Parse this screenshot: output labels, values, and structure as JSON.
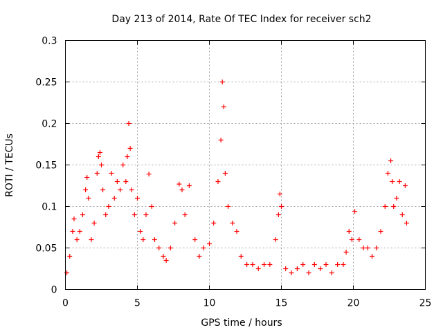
{
  "chart_data": {
    "type": "scatter",
    "title": "Day 213 of 2014, Rate Of TEC Index for receiver sch2",
    "xlabel": "GPS time / hours",
    "ylabel": "ROTI / TECUs",
    "xlim": [
      0,
      25
    ],
    "ylim": [
      0,
      0.3
    ],
    "x_ticks": [
      0,
      5,
      10,
      15,
      20,
      25
    ],
    "x_tick_labels": [
      "0",
      "5",
      "10",
      "15",
      "20",
      "25"
    ],
    "y_ticks": [
      0,
      0.05,
      0.1,
      0.15,
      0.2,
      0.25,
      0.3
    ],
    "y_tick_labels": [
      "0",
      "0.05",
      "0.1",
      "0.15",
      "0.2",
      "0.25",
      "0.3"
    ],
    "grid": true,
    "marker": "+",
    "marker_color": "#ff0000",
    "series": [
      {
        "name": "ROTI",
        "x": [
          0.1,
          0.3,
          0.5,
          0.6,
          0.8,
          1.0,
          1.2,
          1.4,
          1.5,
          1.6,
          1.8,
          2.0,
          2.2,
          2.3,
          2.4,
          2.5,
          2.6,
          2.8,
          3.0,
          3.2,
          3.4,
          3.6,
          3.8,
          4.0,
          4.2,
          4.3,
          4.4,
          4.5,
          4.6,
          4.8,
          5.0,
          5.2,
          5.4,
          5.6,
          5.8,
          6.0,
          6.2,
          6.5,
          6.8,
          7.0,
          7.3,
          7.6,
          7.9,
          8.1,
          8.3,
          8.6,
          9.0,
          9.3,
          9.6,
          10.0,
          10.3,
          10.6,
          10.8,
          10.9,
          11.0,
          11.1,
          11.3,
          11.6,
          11.9,
          12.2,
          12.6,
          13.0,
          13.4,
          13.8,
          14.2,
          14.6,
          14.8,
          14.9,
          15.0,
          15.3,
          15.7,
          16.1,
          16.5,
          16.9,
          17.3,
          17.7,
          18.1,
          18.5,
          18.9,
          19.3,
          19.5,
          19.7,
          19.9,
          20.1,
          20.4,
          20.7,
          21.0,
          21.3,
          21.6,
          21.9,
          22.2,
          22.4,
          22.6,
          22.7,
          22.8,
          23.0,
          23.2,
          23.4,
          23.6,
          23.7
        ],
        "y": [
          0.02,
          0.04,
          0.07,
          0.085,
          0.06,
          0.07,
          0.09,
          0.12,
          0.135,
          0.11,
          0.06,
          0.08,
          0.14,
          0.16,
          0.165,
          0.15,
          0.12,
          0.09,
          0.1,
          0.14,
          0.11,
          0.13,
          0.12,
          0.15,
          0.13,
          0.16,
          0.2,
          0.17,
          0.12,
          0.09,
          0.11,
          0.07,
          0.06,
          0.09,
          0.139,
          0.1,
          0.06,
          0.05,
          0.04,
          0.035,
          0.05,
          0.08,
          0.127,
          0.12,
          0.09,
          0.125,
          0.06,
          0.04,
          0.05,
          0.055,
          0.08,
          0.13,
          0.18,
          0.25,
          0.22,
          0.14,
          0.1,
          0.08,
          0.07,
          0.04,
          0.03,
          0.03,
          0.025,
          0.03,
          0.03,
          0.06,
          0.09,
          0.115,
          0.1,
          0.025,
          0.02,
          0.025,
          0.03,
          0.02,
          0.03,
          0.025,
          0.03,
          0.02,
          0.03,
          0.03,
          0.045,
          0.07,
          0.06,
          0.094,
          0.06,
          0.05,
          0.05,
          0.04,
          0.05,
          0.07,
          0.1,
          0.14,
          0.155,
          0.13,
          0.1,
          0.11,
          0.13,
          0.09,
          0.125,
          0.08
        ]
      }
    ]
  }
}
